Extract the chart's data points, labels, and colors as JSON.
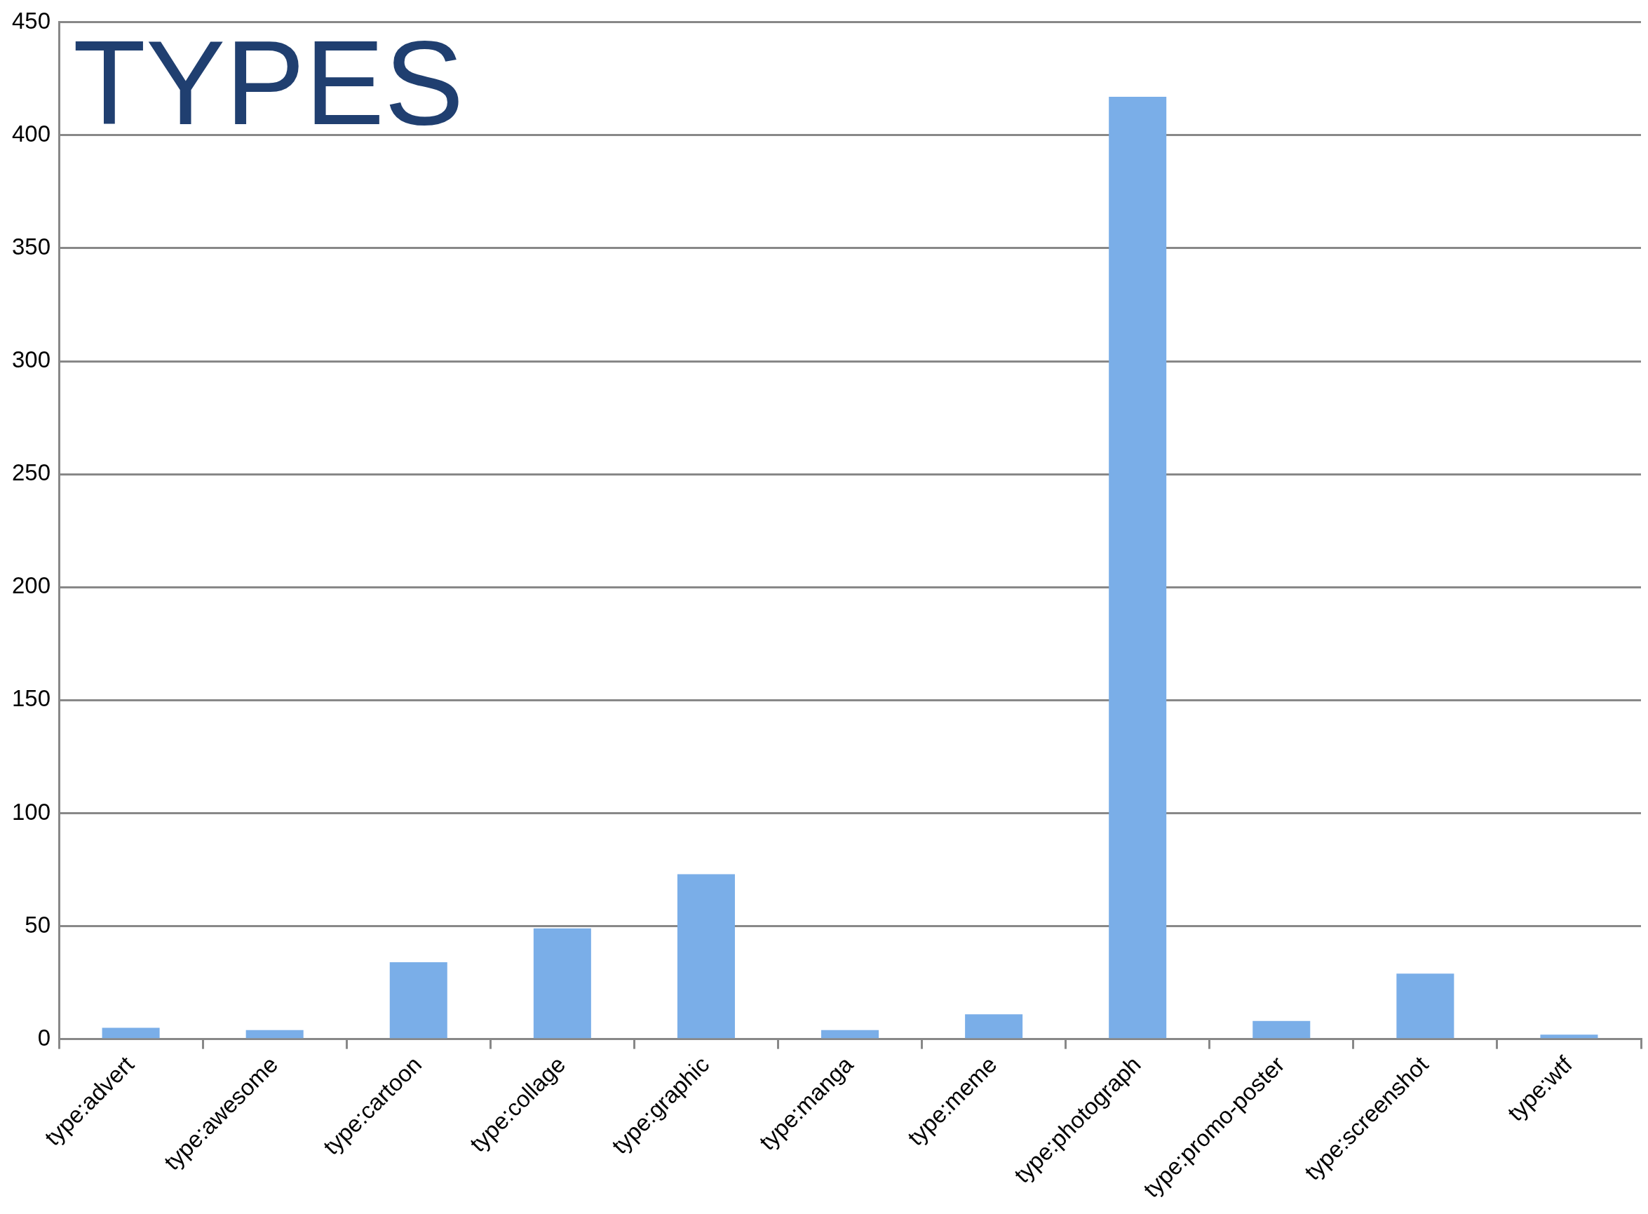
{
  "chart_data": {
    "type": "bar",
    "title": "TYPES",
    "categories": [
      "type:advert",
      "type:awesome",
      "type:cartoon",
      "type:collage",
      "type:graphic",
      "type:manga",
      "type:meme",
      "type:photograph",
      "type:promo-poster",
      "type:screenshot",
      "type:wtf"
    ],
    "values": [
      5,
      4,
      34,
      49,
      73,
      4,
      11,
      417,
      8,
      29,
      2
    ],
    "color": "#7aaee8",
    "ylim": [
      0,
      450
    ],
    "yticks": [
      0,
      50,
      100,
      150,
      200,
      250,
      300,
      350,
      400,
      450
    ],
    "grid": "y",
    "legend": false
  }
}
